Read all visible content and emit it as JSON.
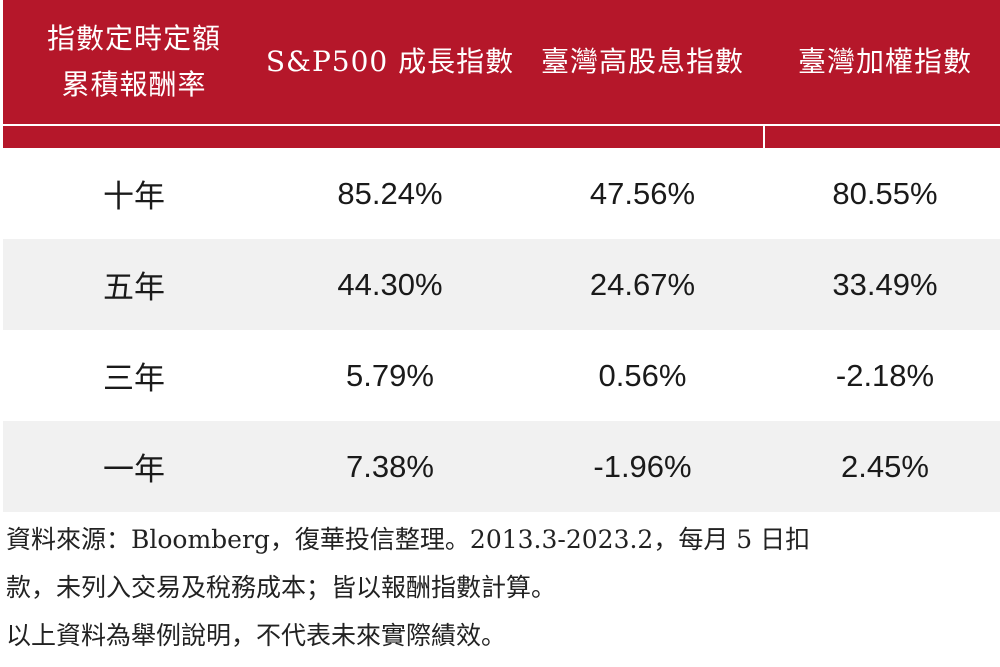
{
  "table": {
    "header": {
      "col1_line1": "指數定時定額",
      "col1_line2": "累積報酬率",
      "col2": "S&P500 成長指數",
      "col3": "臺灣高股息指數",
      "col4": "臺灣加權指數"
    },
    "rows": [
      {
        "period": "十年",
        "sp500": "85.24%",
        "high_div": "47.56%",
        "taiex": "80.55%"
      },
      {
        "period": "五年",
        "sp500": "44.30%",
        "high_div": "24.67%",
        "taiex": "33.49%"
      },
      {
        "period": "三年",
        "sp500": "5.79%",
        "high_div": "0.56%",
        "taiex": "-2.18%"
      },
      {
        "period": "一年",
        "sp500": "7.38%",
        "high_div": "-1.96%",
        "taiex": "2.45%"
      }
    ]
  },
  "footnote": {
    "line1": "資料來源：Bloomberg，復華投信整理。2013.3-2023.2，每月 5 日扣",
    "line2": "款，未列入交易及稅務成本；皆以報酬指數計算。",
    "line3": "以上資料為舉例說明，不代表未來實際績效。"
  },
  "colors": {
    "header_bg": "#b5172a",
    "stripe_bg": "#f1f1f1"
  }
}
